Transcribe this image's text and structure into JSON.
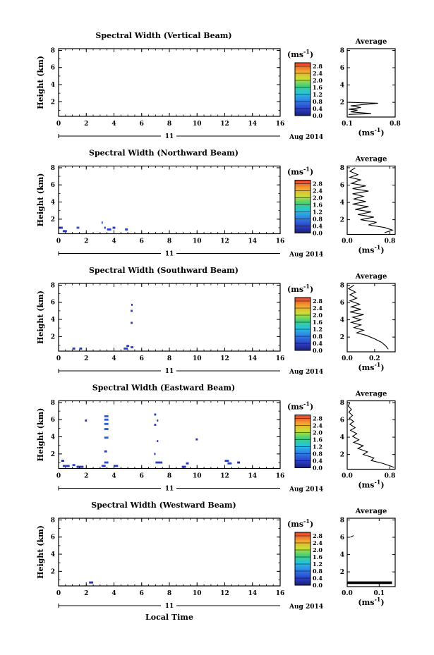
{
  "figure": {
    "xlabel": "Local Time",
    "date_left": "11",
    "date_right": "Aug 2014",
    "avg_title": "Average",
    "unit_label": "(ms",
    "unit_sup": "-1",
    "unit_close": ")"
  },
  "chart_data": [
    {
      "type": "heatmap",
      "title": "Spectral Width (Vertical Beam)",
      "xlabel": "Local Time",
      "ylabel": "Height (km)",
      "xlim": [
        0,
        16
      ],
      "ylim": [
        0.3,
        8.2
      ],
      "xticks": [
        "0",
        "2",
        "4",
        "6",
        "8",
        "10",
        "12",
        "14",
        "16"
      ],
      "yticks": [
        "2",
        "4",
        "6",
        "8"
      ],
      "colorbar": {
        "ticks": [
          "0.0",
          "0.4",
          "0.8",
          "1.2",
          "1.6",
          "2.0",
          "2.4",
          "2.8"
        ],
        "range": [
          0,
          3.0
        ]
      },
      "cells": [],
      "average": {
        "xlim": [
          0.1,
          0.8
        ],
        "xticks": [
          "0.1",
          "0.8"
        ],
        "ylim": [
          0.3,
          8.2
        ],
        "profile": [
          [
            0.12,
            0.6
          ],
          [
            0.45,
            0.7
          ],
          [
            0.15,
            0.9
          ],
          [
            0.25,
            1.1
          ],
          [
            0.12,
            1.2
          ],
          [
            0.3,
            1.4
          ],
          [
            0.15,
            1.6
          ],
          [
            0.55,
            1.9
          ],
          [
            0.12,
            2.0
          ]
        ]
      }
    },
    {
      "type": "heatmap",
      "title": "Spectral Width (Northward Beam)",
      "xlabel": "Local Time",
      "ylabel": "Height (km)",
      "xlim": [
        0,
        16
      ],
      "ylim": [
        0.3,
        8.2
      ],
      "xticks": [
        "0",
        "2",
        "4",
        "6",
        "8",
        "10",
        "12",
        "14",
        "16"
      ],
      "yticks": [
        "2",
        "4",
        "6",
        "8"
      ],
      "colorbar": {
        "ticks": [
          "0.0",
          "0.4",
          "0.8",
          "1.2",
          "1.6",
          "2.0",
          "2.4",
          "2.8"
        ],
        "range": [
          0,
          3.0
        ]
      },
      "cells": [
        {
          "t": 0.0,
          "h": 1.0,
          "w": 0.3,
          "v": 0.3
        },
        {
          "t": 0.3,
          "h": 0.6,
          "w": 0.3,
          "v": 0.3
        },
        {
          "t": 1.3,
          "h": 1.0,
          "w": 0.2,
          "v": 0.5
        },
        {
          "t": 3.1,
          "h": 1.6,
          "w": 0.1,
          "v": 0.5
        },
        {
          "t": 3.5,
          "h": 0.8,
          "w": 0.3,
          "v": 0.4
        },
        {
          "t": 3.9,
          "h": 1.0,
          "w": 0.2,
          "v": 0.3
        },
        {
          "t": 4.8,
          "h": 0.8,
          "w": 0.2,
          "v": 0.4
        },
        {
          "t": 3.3,
          "h": 1.0,
          "w": 0.1,
          "v": 0.2
        }
      ],
      "average": {
        "xlim": [
          0.0,
          0.9
        ],
        "xticks": [
          "0.0",
          "0.8"
        ],
        "ylim": [
          0.3,
          8.2
        ],
        "profile": [
          [
            0.15,
            8.0
          ],
          [
            0.05,
            7.6
          ],
          [
            0.2,
            7.2
          ],
          [
            0.05,
            6.9
          ],
          [
            0.25,
            6.6
          ],
          [
            0.08,
            6.2
          ],
          [
            0.35,
            5.9
          ],
          [
            0.1,
            5.6
          ],
          [
            0.4,
            5.3
          ],
          [
            0.1,
            5.0
          ],
          [
            0.3,
            4.7
          ],
          [
            0.12,
            4.4
          ],
          [
            0.35,
            4.1
          ],
          [
            0.1,
            3.8
          ],
          [
            0.4,
            3.5
          ],
          [
            0.15,
            3.2
          ],
          [
            0.45,
            2.9
          ],
          [
            0.2,
            2.6
          ],
          [
            0.5,
            2.3
          ],
          [
            0.25,
            2.0
          ],
          [
            0.55,
            1.7
          ],
          [
            0.4,
            1.4
          ],
          [
            0.7,
            1.1
          ],
          [
            0.85,
            0.8
          ],
          [
            0.7,
            0.5
          ]
        ]
      }
    },
    {
      "type": "heatmap",
      "title": "Spectral Width (Southward Beam)",
      "xlabel": "Local Time",
      "ylabel": "Height (km)",
      "xlim": [
        0,
        16
      ],
      "ylim": [
        0.3,
        8.2
      ],
      "xticks": [
        "0",
        "2",
        "4",
        "6",
        "8",
        "10",
        "12",
        "14",
        "16"
      ],
      "yticks": [
        "2",
        "4",
        "6",
        "8"
      ],
      "colorbar": {
        "ticks": [
          "0.0",
          "0.4",
          "0.8",
          "1.2",
          "1.6",
          "2.0",
          "2.4",
          "2.8"
        ],
        "range": [
          0,
          3.0
        ]
      },
      "cells": [
        {
          "t": 1.0,
          "h": 0.6,
          "w": 0.2,
          "v": 0.3
        },
        {
          "t": 1.5,
          "h": 0.6,
          "w": 0.2,
          "v": 0.3
        },
        {
          "t": 4.7,
          "h": 0.6,
          "w": 0.3,
          "v": 0.4
        },
        {
          "t": 4.9,
          "h": 0.9,
          "w": 0.2,
          "v": 0.4
        },
        {
          "t": 5.2,
          "h": 0.75,
          "w": 0.2,
          "v": 0.4
        },
        {
          "t": 5.2,
          "h": 3.6,
          "w": 0.15,
          "v": 0.4
        },
        {
          "t": 5.2,
          "h": 5.0,
          "w": 0.15,
          "v": 0.4
        },
        {
          "t": 5.25,
          "h": 5.7,
          "w": 0.1,
          "v": 0.3
        }
      ],
      "average": {
        "xlim": [
          0.0,
          0.35
        ],
        "xticks": [
          "0.0",
          "0.2"
        ],
        "ylim": [
          0.3,
          8.2
        ],
        "profile": [
          [
            0.05,
            8.0
          ],
          [
            0.01,
            7.6
          ],
          [
            0.06,
            7.2
          ],
          [
            0.02,
            6.9
          ],
          [
            0.07,
            6.5
          ],
          [
            0.02,
            6.2
          ],
          [
            0.09,
            5.8
          ],
          [
            0.03,
            5.5
          ],
          [
            0.1,
            5.2
          ],
          [
            0.02,
            4.9
          ],
          [
            0.12,
            4.6
          ],
          [
            0.04,
            4.3
          ],
          [
            0.1,
            4.0
          ],
          [
            0.03,
            3.7
          ],
          [
            0.1,
            3.4
          ],
          [
            0.05,
            3.1
          ],
          [
            0.12,
            2.8
          ],
          [
            0.07,
            2.5
          ],
          [
            0.14,
            2.2
          ],
          [
            0.2,
            1.8
          ],
          [
            0.25,
            1.4
          ],
          [
            0.28,
            1.0
          ],
          [
            0.3,
            0.6
          ]
        ]
      }
    },
    {
      "type": "heatmap",
      "title": "Spectral Width (Eastward Beam)",
      "xlabel": "Local Time",
      "ylabel": "Height (km)",
      "xlim": [
        0,
        16
      ],
      "ylim": [
        0.3,
        8.2
      ],
      "xticks": [
        "0",
        "2",
        "4",
        "6",
        "8",
        "10",
        "12",
        "14",
        "16"
      ],
      "yticks": [
        "2",
        "4",
        "6",
        "8"
      ],
      "colorbar": {
        "ticks": [
          "0.0",
          "0.4",
          "0.8",
          "1.2",
          "1.6",
          "2.0",
          "2.4",
          "2.8"
        ],
        "range": [
          0,
          3.0
        ]
      },
      "cells": [
        {
          "t": 0.3,
          "h": 0.6,
          "w": 0.5,
          "v": 0.4
        },
        {
          "t": 1.0,
          "h": 0.7,
          "w": 0.2,
          "v": 0.4
        },
        {
          "t": 1.3,
          "h": 0.5,
          "w": 0.5,
          "v": 0.3
        },
        {
          "t": 1.9,
          "h": 5.9,
          "w": 0.15,
          "v": 0.3
        },
        {
          "t": 3.1,
          "h": 0.6,
          "w": 0.3,
          "v": 0.4
        },
        {
          "t": 3.3,
          "h": 1.0,
          "w": 0.3,
          "v": 0.5
        },
        {
          "t": 3.3,
          "h": 2.3,
          "w": 0.2,
          "v": 0.4
        },
        {
          "t": 3.3,
          "h": 3.9,
          "w": 0.3,
          "v": 0.6
        },
        {
          "t": 3.3,
          "h": 4.9,
          "w": 0.3,
          "v": 0.6
        },
        {
          "t": 3.3,
          "h": 5.5,
          "w": 0.3,
          "v": 0.6
        },
        {
          "t": 3.3,
          "h": 6.0,
          "w": 0.3,
          "v": 0.6
        },
        {
          "t": 3.3,
          "h": 6.4,
          "w": 0.3,
          "v": 0.6
        },
        {
          "t": 4.0,
          "h": 0.6,
          "w": 0.3,
          "v": 0.4
        },
        {
          "t": 6.9,
          "h": 6.6,
          "w": 0.15,
          "v": 0.4
        },
        {
          "t": 6.9,
          "h": 5.4,
          "w": 0.15,
          "v": 0.4
        },
        {
          "t": 7.0,
          "h": 1.0,
          "w": 0.5,
          "v": 0.4
        },
        {
          "t": 7.1,
          "h": 3.5,
          "w": 0.1,
          "v": 0.3
        },
        {
          "t": 7.1,
          "h": 5.9,
          "w": 0.1,
          "v": 0.3
        },
        {
          "t": 8.9,
          "h": 0.5,
          "w": 0.3,
          "v": 0.3
        },
        {
          "t": 9.2,
          "h": 0.9,
          "w": 0.2,
          "v": 0.3
        },
        {
          "t": 9.9,
          "h": 3.7,
          "w": 0.15,
          "v": 0.3
        },
        {
          "t": 12.0,
          "h": 1.2,
          "w": 0.3,
          "v": 0.4
        },
        {
          "t": 12.2,
          "h": 0.9,
          "w": 0.3,
          "v": 0.4
        },
        {
          "t": 12.9,
          "h": 1.0,
          "w": 0.2,
          "v": 0.2
        },
        {
          "t": 0.2,
          "h": 1.2,
          "w": 0.2,
          "v": 0.2
        },
        {
          "t": 6.9,
          "h": 2.0,
          "w": 0.1,
          "v": 0.3
        }
      ],
      "average": {
        "xlim": [
          0.0,
          0.9
        ],
        "xticks": [
          "0.0",
          "0.8"
        ],
        "ylim": [
          0.3,
          8.2
        ],
        "profile": [
          [
            0.05,
            8.0
          ],
          [
            0.02,
            7.6
          ],
          [
            0.08,
            7.2
          ],
          [
            0.03,
            6.9
          ],
          [
            0.1,
            6.5
          ],
          [
            0.04,
            6.2
          ],
          [
            0.12,
            5.8
          ],
          [
            0.05,
            5.5
          ],
          [
            0.15,
            5.1
          ],
          [
            0.06,
            4.8
          ],
          [
            0.18,
            4.4
          ],
          [
            0.1,
            4.1
          ],
          [
            0.22,
            3.7
          ],
          [
            0.12,
            3.4
          ],
          [
            0.3,
            3.0
          ],
          [
            0.2,
            2.7
          ],
          [
            0.38,
            2.3
          ],
          [
            0.3,
            2.0
          ],
          [
            0.5,
            1.6
          ],
          [
            0.45,
            1.3
          ],
          [
            0.65,
            1.0
          ],
          [
            0.8,
            0.7
          ],
          [
            0.88,
            0.5
          ]
        ]
      }
    },
    {
      "type": "heatmap",
      "title": "Spectral Width (Westward Beam)",
      "xlabel": "Local Time",
      "ylabel": "Height (km)",
      "xlim": [
        0,
        16
      ],
      "ylim": [
        0.3,
        8.2
      ],
      "xticks": [
        "0",
        "2",
        "4",
        "6",
        "8",
        "10",
        "12",
        "14",
        "16"
      ],
      "yticks": [
        "2",
        "4",
        "6",
        "8"
      ],
      "colorbar": {
        "ticks": [
          "0.0",
          "0.4",
          "0.8",
          "1.2",
          "1.6",
          "2.0",
          "2.4",
          "2.8"
        ],
        "range": [
          0,
          3.0
        ]
      },
      "cells": [
        {
          "t": 2.2,
          "h": 0.7,
          "w": 0.3,
          "v": 0.3
        }
      ],
      "average": {
        "xlim": [
          0.0,
          0.15
        ],
        "xticks": [
          "0.0",
          "0.1"
        ],
        "ylim": [
          0.3,
          8.2
        ],
        "profile": [
          [
            0.01,
            6.0
          ],
          [
            0.015,
            6.1
          ],
          [
            0.02,
            6.2
          ]
        ],
        "bottom_band": [
          [
            0.0,
            0.9
          ],
          [
            0.14,
            0.6
          ]
        ]
      }
    }
  ]
}
